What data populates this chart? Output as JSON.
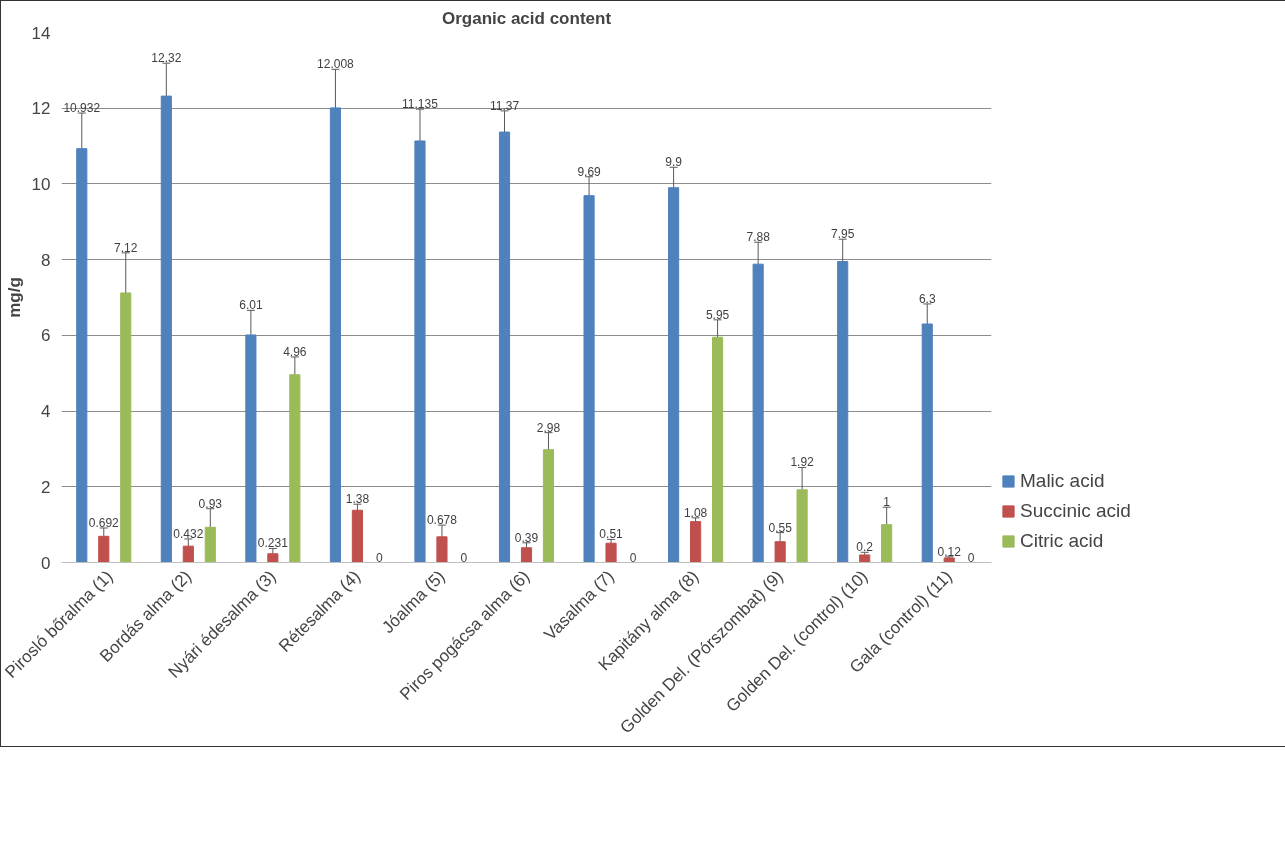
{
  "chart_data": {
    "type": "bar",
    "title": "Organic acid content",
    "ylabel": "mg/g",
    "categories": [
      "Pirosló bőralma (1)",
      "Bordás alma (2)",
      "Nyári édesalma (3)",
      "Rétesalma (4)",
      "Jóalma (5)",
      "Piros pogácsa alma (6)",
      "Vasalma (7)",
      "Kapitány alma (8)",
      "Golden Del. (Pórszombat) (9)",
      "Golden Del. (control) (10)",
      "Gala (control) (11)"
    ],
    "series": [
      {
        "name": "Malic acid",
        "color": "#4f81bd",
        "values": [
          10.932,
          12.32,
          6.01,
          12.008,
          11.135,
          11.37,
          9.69,
          9.9,
          7.88,
          7.95,
          6.3
        ],
        "errors": [
          0.94,
          0.87,
          0.65,
          1.02,
          0.84,
          0.56,
          0.5,
          0.54,
          0.58,
          0.59,
          0.53
        ]
      },
      {
        "name": "Succinic acid",
        "color": "#c0504d",
        "values": [
          0.692,
          0.432,
          0.231,
          1.38,
          0.678,
          0.39,
          0.51,
          1.08,
          0.55,
          0.2,
          0.12
        ],
        "errors": [
          0.22,
          0.19,
          0.14,
          0.16,
          0.31,
          0.13,
          0.1,
          0.1,
          0.24,
          0.07,
          0.03
        ]
      },
      {
        "name": "Citric acid",
        "color": "#9bbb59",
        "values": [
          7.12,
          0.93,
          4.96,
          0,
          0,
          2.98,
          0,
          5.95,
          1.92,
          1,
          0
        ],
        "errors": [
          1.06,
          0.49,
          0.47,
          null,
          null,
          0.45,
          null,
          0.46,
          0.59,
          0.46,
          null
        ]
      }
    ],
    "ylim": [
      0,
      14
    ],
    "yticks": [
      0,
      2,
      4,
      6,
      8,
      10,
      12,
      14
    ],
    "grid": "y",
    "legend": "bottom right",
    "data_labels": true
  }
}
